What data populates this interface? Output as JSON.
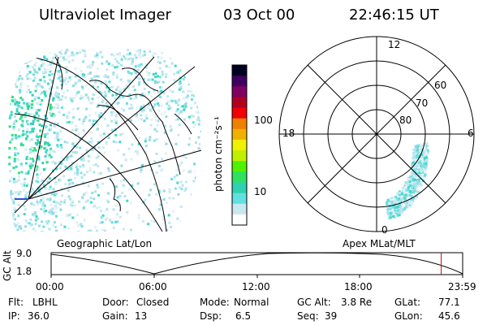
{
  "header": {
    "instrument": "Ultraviolet Imager",
    "date": "03 Oct 00",
    "time": "22:46:15 UT"
  },
  "left_panel": {
    "label": "Geographic Lat/Lon"
  },
  "right_panel": {
    "label": "Apex MLat/MLT",
    "mlt_labels": [
      "12",
      "18",
      "6",
      "0"
    ],
    "lat_labels": [
      "60",
      "70",
      "80"
    ]
  },
  "colorbar": {
    "unit_label": "photon cm⁻²s⁻¹",
    "ticks": [
      "100",
      "10"
    ],
    "tick_values": [
      100,
      10
    ],
    "scale": "log",
    "colors": [
      "#ffffff",
      "#c8e8f0",
      "#60e0e0",
      "#30d0b0",
      "#30e060",
      "#50f000",
      "#c0f000",
      "#f0f000",
      "#f0b000",
      "#f08000",
      "#f00000",
      "#b00020",
      "#800060",
      "#400060",
      "#000020"
    ]
  },
  "altitude_plot": {
    "ylabel": "GC Alt",
    "ytick_top": "9.0",
    "ytick_bottom": "1.8",
    "xticks": [
      "00:00",
      "06:00",
      "12:00",
      "18:00",
      "23:59"
    ],
    "marker_color": "#d00000",
    "marker_time_fraction": 0.948
  },
  "footer": {
    "row1": [
      {
        "label": "Flt:",
        "value": "LBHL"
      },
      {
        "label": "Door:",
        "value": "Closed"
      },
      {
        "label": "Mode:",
        "value": "Normal"
      },
      {
        "label": "GC Alt:",
        "value": "3.8 Re"
      },
      {
        "label": "GLat:",
        "value": "77.1"
      }
    ],
    "row2": [
      {
        "label": "IP:",
        "value": "36.0"
      },
      {
        "label": "Gain:",
        "value": "13"
      },
      {
        "label": "Dsp:",
        "value": "6.5"
      },
      {
        "label": "Seq:",
        "value": "39"
      },
      {
        "label": "GLon:",
        "value": "45.6"
      }
    ]
  }
}
